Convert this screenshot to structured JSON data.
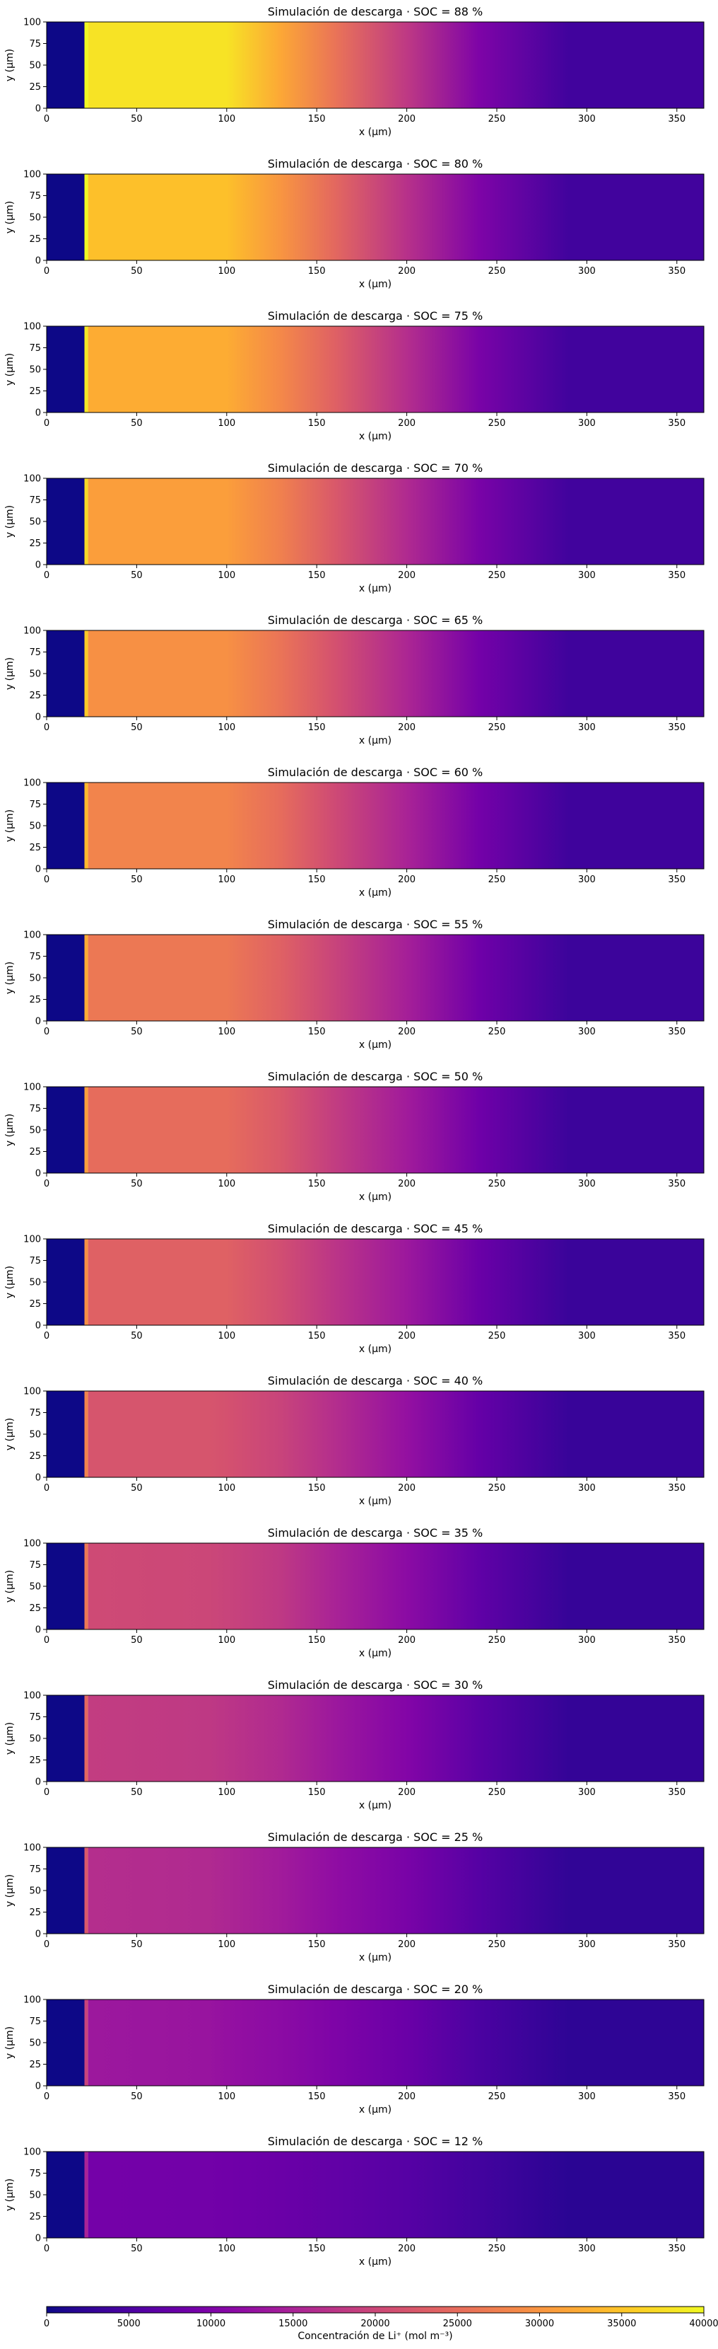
{
  "chart_data": {
    "type": "heatmap",
    "colormap": "plasma",
    "title_prefix": "Simulación de descarga · SOC = ",
    "title_suffix": " %",
    "xlabel": "x (μm)",
    "ylabel": "y (μm)",
    "xlim": [
      0,
      365
    ],
    "ylim": [
      0,
      100
    ],
    "x_ticks": [
      0,
      50,
      100,
      150,
      200,
      250,
      300,
      350
    ],
    "y_ticks": [
      0,
      25,
      50,
      75,
      100
    ],
    "colorbar": {
      "label": "Concentración de Li⁺ (mol m⁻³)",
      "range": [
        0,
        40000
      ],
      "ticks": [
        0,
        5000,
        10000,
        15000,
        20000,
        25000,
        30000,
        35000,
        40000
      ]
    },
    "regions": {
      "left_block_x": [
        0,
        21
      ],
      "thin_stripe_x": [
        21,
        23
      ]
    },
    "profile_x": [
      0,
      21,
      23,
      90,
      100,
      130,
      160,
      200,
      240,
      290,
      365
    ],
    "panels": [
      {
        "soc": "88",
        "profile": [
          0,
          0,
          38000,
          38000,
          38000,
          32000,
          26000,
          18000,
          10000,
          4000,
          4000
        ]
      },
      {
        "soc": "80",
        "profile": [
          0,
          0,
          34500,
          34500,
          34500,
          30000,
          24500,
          17000,
          10000,
          4000,
          4000
        ]
      },
      {
        "soc": "75",
        "profile": [
          0,
          0,
          32500,
          32500,
          32500,
          28500,
          23500,
          16500,
          9500,
          4000,
          4000
        ]
      },
      {
        "soc": "70",
        "profile": [
          0,
          0,
          31000,
          31000,
          31000,
          27500,
          22500,
          16000,
          9500,
          4000,
          4000
        ]
      },
      {
        "soc": "65",
        "profile": [
          0,
          0,
          29500,
          29500,
          29500,
          26000,
          21500,
          15500,
          9000,
          3800,
          3800
        ]
      },
      {
        "soc": "60",
        "profile": [
          0,
          0,
          28000,
          28000,
          28000,
          25000,
          20500,
          15000,
          9000,
          3800,
          3800
        ]
      },
      {
        "soc": "55",
        "profile": [
          0,
          0,
          26500,
          26500,
          26500,
          23500,
          19500,
          14500,
          8500,
          3600,
          3600
        ]
      },
      {
        "soc": "50",
        "profile": [
          0,
          0,
          25000,
          25000,
          25000,
          22500,
          18500,
          14000,
          8500,
          3600,
          3600
        ]
      },
      {
        "soc": "45",
        "profile": [
          0,
          0,
          23500,
          23500,
          23500,
          21000,
          17500,
          13500,
          8000,
          3400,
          3400
        ]
      },
      {
        "soc": "40",
        "profile": [
          0,
          0,
          22000,
          22000,
          21500,
          19500,
          16500,
          12500,
          7500,
          3200,
          3200
        ]
      },
      {
        "soc": "35",
        "profile": [
          0,
          0,
          20500,
          20000,
          19500,
          18000,
          15000,
          11500,
          7000,
          3000,
          3000
        ]
      },
      {
        "soc": "30",
        "profile": [
          0,
          0,
          18500,
          18000,
          17500,
          16000,
          13500,
          10500,
          6500,
          2800,
          2800
        ]
      },
      {
        "soc": "25",
        "profile": [
          0,
          0,
          16500,
          16000,
          15500,
          14000,
          12000,
          9500,
          6000,
          2600,
          2600
        ]
      },
      {
        "soc": "20",
        "profile": [
          0,
          0,
          13500,
          13000,
          12500,
          11500,
          10000,
          8000,
          5000,
          2300,
          2300
        ]
      },
      {
        "soc": "12",
        "profile": [
          0,
          0,
          9000,
          8800,
          8600,
          8000,
          7200,
          6000,
          4200,
          2000,
          2000
        ]
      }
    ]
  }
}
